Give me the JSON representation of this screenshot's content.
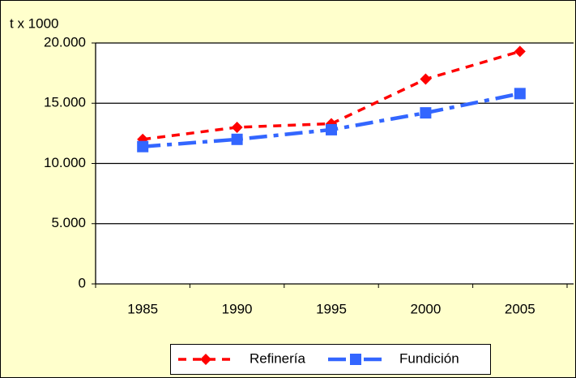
{
  "chart_data": {
    "type": "line",
    "ylabel": "t x 1000",
    "categories": [
      "1985",
      "1990",
      "1995",
      "2000",
      "2005"
    ],
    "series": [
      {
        "name": "Refinería",
        "color": "#ff0000",
        "values": [
          12000,
          13000,
          13300,
          17000,
          19300
        ]
      },
      {
        "name": "Fundición",
        "color": "#3366ff",
        "values": [
          11400,
          12000,
          12800,
          14200,
          15800
        ]
      }
    ],
    "ylim": [
      0,
      20000
    ],
    "yticks": [
      0,
      {
        "value": 5000,
        "label": "5.000"
      },
      {
        "value": 10000,
        "label": "10.000"
      },
      {
        "value": 15000,
        "label": "15.000"
      },
      {
        "value": 20000,
        "label": "20.000"
      }
    ],
    "grid": true,
    "legend": "bottom"
  }
}
